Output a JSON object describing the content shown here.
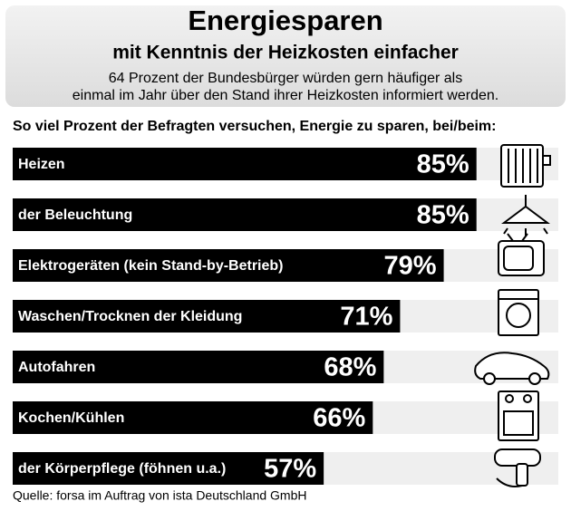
{
  "chart_data": {
    "type": "bar",
    "title": "Energiesparen",
    "subtitle": "mit Kenntnis der Heizkosten einfacher",
    "intro": [
      "64 Prozent der Bundesbürger würden gern häufiger als",
      "einmal im Jahr über den Stand ihrer Heizkosten informiert werden."
    ],
    "question": "So viel Prozent der Befragten versuchen, Energie zu sparen, bei/beim:",
    "categories": [
      "Heizen",
      "der Beleuchtung",
      "Elektrogeräten (kein Stand-by-Betrieb)",
      "Waschen/Trocknen der Kleidung",
      "Autofahren",
      "Kochen/Kühlen",
      "der Körperpflege (föhnen u.a.)"
    ],
    "values": [
      85,
      85,
      79,
      71,
      68,
      66,
      57
    ],
    "value_labels": [
      "85%",
      "85%",
      "79%",
      "71%",
      "68%",
      "66%",
      "57%"
    ],
    "color": "#000000",
    "source": "Quelle: forsa im Auftrag von ista Deutschland GmbH"
  }
}
